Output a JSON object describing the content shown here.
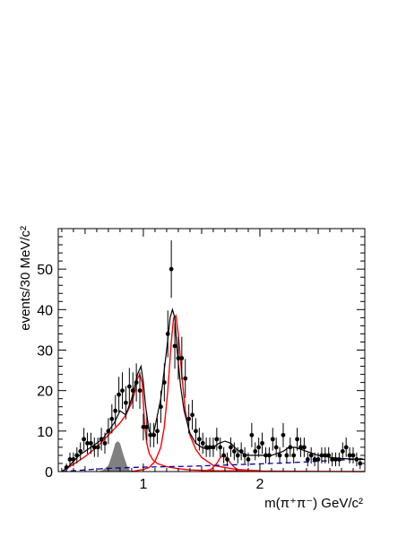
{
  "chart_data": {
    "type": "scatter",
    "title": "",
    "xlabel": "m(π⁺π⁻) GeV/c²",
    "ylabel": "events/30 MeV/c²",
    "xlim": [
      0.27,
      2.9
    ],
    "ylim": [
      0,
      60
    ],
    "x_ticks": [
      1,
      2
    ],
    "x_tick_labels": [
      "1",
      "2"
    ],
    "y_ticks": [
      0,
      10,
      20,
      30,
      40,
      50
    ],
    "y_tick_labels": [
      "0",
      "10",
      "20",
      "30",
      "40",
      "50"
    ],
    "grid": false,
    "legend": "none",
    "colors": {
      "data": "#000000",
      "total_fit": "#000000",
      "components": "#ff0000",
      "background": "#0000aa",
      "filled_component": "#808080"
    },
    "series": [
      {
        "kind": "points_with_errors",
        "x": [
          0.34,
          0.37,
          0.4,
          0.43,
          0.46,
          0.49,
          0.52,
          0.55,
          0.58,
          0.61,
          0.64,
          0.67,
          0.7,
          0.73,
          0.76,
          0.79,
          0.82,
          0.85,
          0.88,
          0.91,
          0.94,
          0.97,
          1.0,
          1.03,
          1.06,
          1.09,
          1.12,
          1.15,
          1.18,
          1.21,
          1.24,
          1.27,
          1.3,
          1.33,
          1.36,
          1.39,
          1.42,
          1.45,
          1.48,
          1.51,
          1.54,
          1.57,
          1.6,
          1.63,
          1.66,
          1.69,
          1.72,
          1.75,
          1.78,
          1.81,
          1.84,
          1.87,
          1.9,
          1.93,
          1.96,
          1.99,
          2.02,
          2.05,
          2.08,
          2.11,
          2.14,
          2.17,
          2.2,
          2.23,
          2.26,
          2.29,
          2.32,
          2.35,
          2.38,
          2.41,
          2.44,
          2.47,
          2.5,
          2.53,
          2.56,
          2.59,
          2.62,
          2.65,
          2.68,
          2.71,
          2.74,
          2.77,
          2.8,
          2.83,
          2.86
        ],
        "y": [
          1,
          3,
          3,
          4,
          5,
          8,
          7,
          7,
          6,
          6,
          8,
          7,
          10,
          13,
          15,
          19,
          20,
          17,
          21,
          20,
          22,
          20,
          11,
          11,
          9,
          9,
          10,
          16,
          22,
          34,
          50,
          31,
          28,
          28,
          23,
          13,
          14,
          10,
          8,
          7,
          6,
          6,
          6,
          8,
          6,
          4,
          3,
          6,
          5,
          4,
          5,
          4,
          3,
          9,
          5,
          6,
          7,
          4,
          4,
          8,
          6,
          4,
          9,
          4,
          6,
          4,
          8,
          6,
          6,
          3,
          4,
          3,
          3,
          4,
          4,
          4,
          3,
          3,
          3,
          5,
          6,
          4,
          4,
          3,
          2
        ],
        "yerr": [
          1.0,
          1.7,
          1.7,
          2.0,
          2.2,
          2.8,
          2.6,
          2.6,
          2.4,
          2.4,
          2.8,
          2.6,
          3.2,
          3.6,
          3.9,
          4.4,
          4.5,
          4.1,
          4.6,
          4.5,
          4.7,
          4.5,
          3.3,
          3.3,
          3.0,
          3.0,
          3.2,
          4.0,
          4.7,
          5.8,
          7.1,
          5.6,
          5.3,
          5.3,
          4.8,
          3.6,
          3.7,
          3.2,
          2.8,
          2.6,
          2.4,
          2.4,
          2.4,
          2.8,
          2.4,
          2.0,
          1.7,
          2.4,
          2.2,
          2.0,
          2.2,
          2.0,
          1.7,
          3.0,
          2.2,
          2.4,
          2.6,
          2.0,
          2.0,
          2.8,
          2.4,
          2.0,
          3.0,
          2.0,
          2.4,
          2.0,
          2.8,
          2.4,
          2.4,
          1.7,
          2.0,
          1.7,
          1.7,
          2.0,
          2.0,
          2.0,
          1.7,
          1.7,
          1.7,
          2.2,
          2.4,
          2.0,
          2.0,
          1.7,
          1.4
        ]
      },
      {
        "kind": "fit_curve",
        "style": "total",
        "x": [
          0.3,
          0.35,
          0.4,
          0.45,
          0.5,
          0.55,
          0.6,
          0.65,
          0.7,
          0.75,
          0.8,
          0.85,
          0.9,
          0.95,
          0.98,
          1.0,
          1.02,
          1.05,
          1.08,
          1.1,
          1.15,
          1.2,
          1.23,
          1.25,
          1.27,
          1.29,
          1.32,
          1.35,
          1.4,
          1.45,
          1.5,
          1.55,
          1.6,
          1.65,
          1.7,
          1.75,
          1.8,
          1.85,
          1.9,
          2.0,
          2.1,
          2.2,
          2.25,
          2.3,
          2.35,
          2.4,
          2.5,
          2.6,
          2.7,
          2.8,
          2.9
        ],
        "y": [
          0,
          1,
          2.5,
          4,
          5,
          6,
          7,
          8,
          10,
          12,
          15,
          14,
          18,
          24,
          26,
          22,
          16,
          10,
          9,
          11,
          18,
          30,
          38,
          40,
          38,
          30,
          21,
          15,
          9.5,
          7,
          6,
          5.5,
          6,
          7,
          7.5,
          7,
          5.5,
          4.5,
          4,
          4,
          4,
          5,
          6,
          6,
          5.5,
          5,
          4,
          3.5,
          3.2,
          3.1,
          3
        ]
      },
      {
        "kind": "fit_curve",
        "style": "component",
        "x": [
          0.3,
          0.4,
          0.5,
          0.6,
          0.7,
          0.8,
          0.85,
          0.9,
          0.93,
          0.95,
          0.97,
          0.99,
          1.0,
          1.01,
          1.03,
          1.05,
          1.08,
          1.12,
          1.2,
          1.3,
          1.4,
          1.6,
          2.0,
          2.5,
          2.9
        ],
        "y": [
          0,
          1.8,
          3.7,
          6,
          9,
          12,
          14,
          17,
          20,
          23,
          24,
          22,
          17,
          12,
          7,
          4.5,
          3,
          2,
          1.2,
          0.7,
          0.4,
          0.2,
          0.1,
          0.05,
          0
        ],
        "fill": false
      },
      {
        "kind": "fit_curve",
        "style": "component",
        "x": [
          0.9,
          1.0,
          1.05,
          1.1,
          1.15,
          1.18,
          1.21,
          1.24,
          1.26,
          1.28,
          1.3,
          1.33,
          1.36,
          1.4,
          1.45,
          1.5,
          1.6,
          1.8,
          2.0
        ],
        "y": [
          0,
          0.5,
          1,
          2.5,
          6,
          11,
          20,
          32,
          38,
          38.5,
          34,
          24,
          15,
          9,
          5.5,
          3.5,
          1.5,
          0.5,
          0.2
        ],
        "fill": false
      },
      {
        "kind": "fit_curve",
        "style": "component",
        "x": [
          1.5,
          1.58,
          1.63,
          1.66,
          1.69,
          1.72,
          1.75,
          1.8,
          1.85
        ],
        "y": [
          0,
          0.5,
          2,
          3.5,
          4,
          3.2,
          2,
          0.5,
          0
        ],
        "fill": false
      },
      {
        "kind": "fit_curve",
        "style": "component_filled",
        "x": [
          0.6,
          0.65,
          0.7,
          0.73,
          0.76,
          0.78,
          0.8,
          0.83,
          0.86,
          0.88,
          0.9
        ],
        "y": [
          0,
          0.3,
          1.5,
          4,
          7,
          7.5,
          7,
          4,
          1.5,
          0.5,
          0
        ]
      },
      {
        "kind": "fit_curve",
        "style": "background_dashed",
        "x": [
          0.3,
          0.4,
          0.5,
          0.6,
          0.7,
          0.8,
          0.9,
          1.0,
          1.2,
          1.4,
          1.6,
          1.8,
          2.0,
          2.2,
          2.4,
          2.6,
          2.8,
          2.9
        ],
        "y": [
          0,
          0.2,
          0.4,
          0.6,
          0.8,
          0.9,
          1.0,
          1.1,
          1.2,
          1.3,
          1.5,
          1.7,
          1.9,
          2.1,
          2.4,
          2.7,
          3.0,
          3.2
        ]
      }
    ]
  }
}
